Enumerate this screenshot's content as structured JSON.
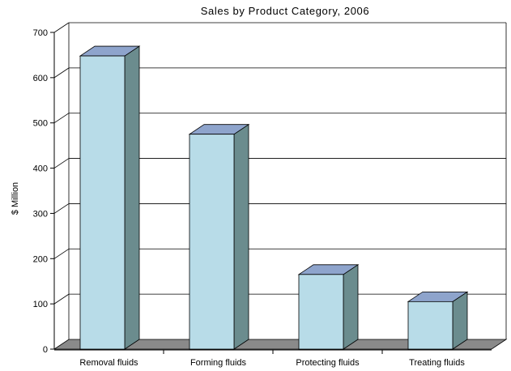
{
  "chart_data": {
    "type": "bar",
    "title": "Sales by Product Category, 2006",
    "xlabel": "",
    "ylabel": "$ Million",
    "categories": [
      "Removal fluids",
      "Forming fluids",
      "Protecting fluids",
      "Treating fluids"
    ],
    "values": [
      648,
      475,
      165,
      105
    ],
    "ylim": [
      0,
      700
    ],
    "yticks": [
      "0",
      "100",
      "200",
      "300",
      "400",
      "500",
      "600",
      "700"
    ],
    "grid": true,
    "legend": "none",
    "style": "3d",
    "colors": {
      "bar_front": "#b8dce8",
      "bar_side": "#6b8c8e",
      "bar_top": "#8ea4cc",
      "floor": "#8a8a8a",
      "grid": "#000000"
    }
  }
}
